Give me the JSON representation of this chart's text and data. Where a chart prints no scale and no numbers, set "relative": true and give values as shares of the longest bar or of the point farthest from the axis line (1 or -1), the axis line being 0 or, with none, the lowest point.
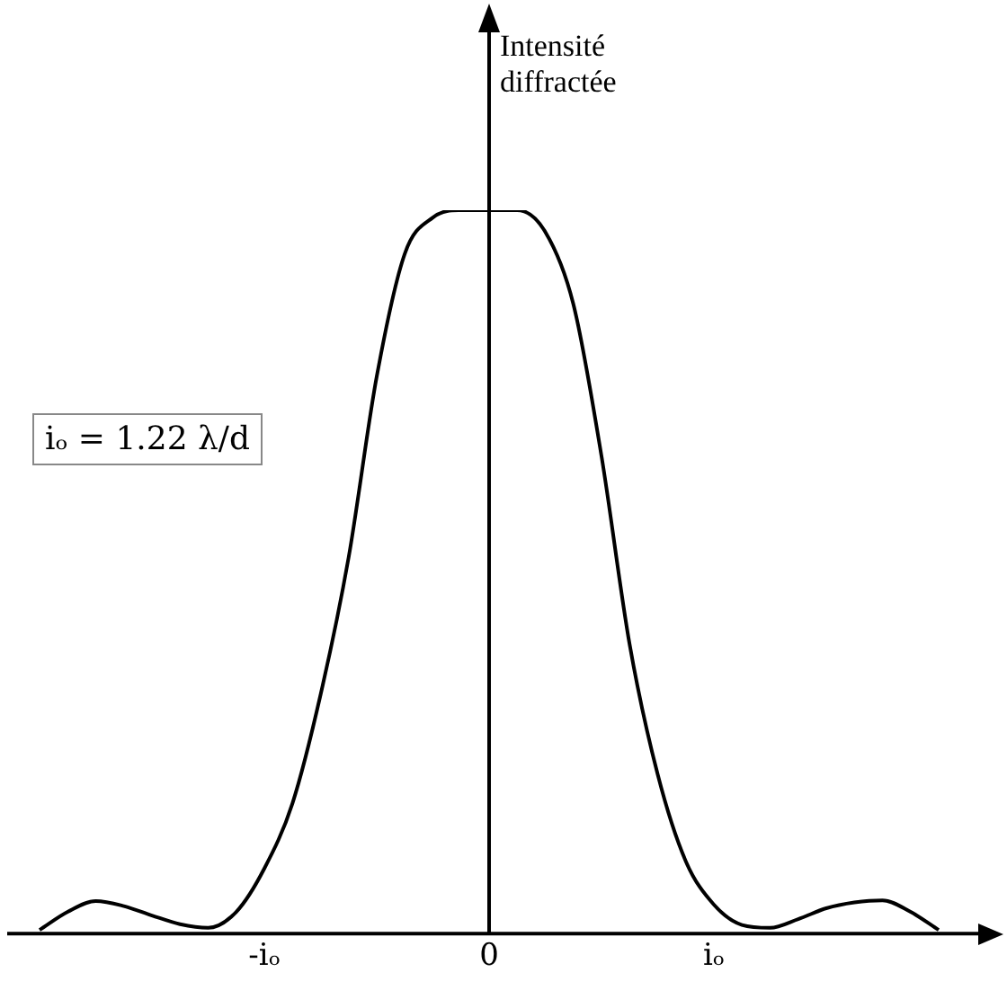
{
  "chart_data": {
    "type": "line",
    "relative": true,
    "ylabel": "Intensité diffractée",
    "annotations": [
      "iₒ = 1.22 λ/d"
    ],
    "color": "#000000",
    "marker": "none",
    "line_style": "solid",
    "grid": false,
    "legend": false,
    "ref_lines": [
      {
        "axis": "x",
        "value": "0",
        "color": "#000000"
      }
    ],
    "categories": [
      null,
      null,
      null,
      null,
      null,
      null,
      null,
      null,
      "-iₒ",
      null,
      null,
      null,
      null,
      null,
      null,
      null,
      "0",
      null,
      null,
      null,
      null,
      null,
      null,
      null,
      "iₒ",
      null,
      null,
      null,
      null,
      null,
      null,
      null,
      null
    ],
    "values": [
      0.005,
      0.03,
      0.045,
      0.038,
      0.025,
      0.013,
      0.008,
      0.03,
      0.09,
      0.18,
      0.33,
      0.52,
      0.77,
      0.94,
      0.99,
      1.0,
      1.0,
      1.0,
      0.97,
      0.87,
      0.66,
      0.4,
      0.22,
      0.1,
      0.04,
      0.012,
      0.008,
      0.02,
      0.035,
      0.043,
      0.046,
      0.03,
      0.005
    ]
  }
}
